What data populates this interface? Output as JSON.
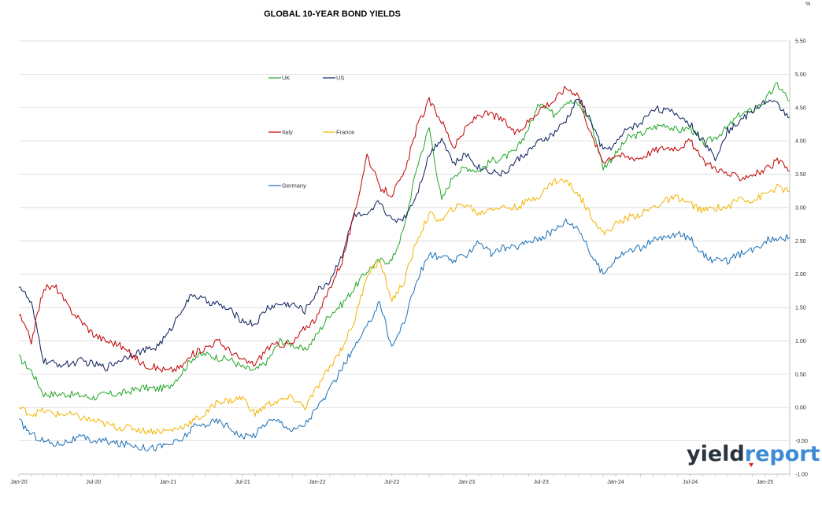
{
  "chart_data": {
    "type": "line",
    "title": "GLOBAL 10-YEAR BOND YIELDS",
    "unit": "%",
    "xlim": [
      "2020-01",
      "2025-03"
    ],
    "ylim": [
      -1.0,
      5.5
    ],
    "y_ticks": [
      "5.50",
      "5.00",
      "4.50",
      "4.00",
      "3.50",
      "3.00",
      "2.50",
      "2.00",
      "1.50",
      "1.00",
      "0.50",
      "0.00",
      "-0.50",
      "-1.00"
    ],
    "y_tick_values": [
      5.5,
      5.0,
      4.5,
      4.0,
      3.5,
      3.0,
      2.5,
      2.0,
      1.5,
      1.0,
      0.5,
      0.0,
      -0.5,
      -1.0
    ],
    "x_ticks": [
      "Jan-20",
      "Jul-20",
      "Jan-21",
      "Jul-21",
      "Jan-22",
      "Jul-22",
      "Jan-23",
      "Jul-23",
      "Jan-24",
      "Jul-24",
      "Jan-25"
    ],
    "x_tick_months": [
      0,
      6,
      12,
      18,
      24,
      30,
      36,
      42,
      48,
      54,
      60
    ],
    "grid": "horizontal",
    "legend_position": "top-center",
    "series": [
      {
        "name": "UK",
        "color": "#22a526",
        "values": [
          0.75,
          0.55,
          0.2,
          0.2,
          0.2,
          0.18,
          0.15,
          0.2,
          0.2,
          0.25,
          0.3,
          0.28,
          0.3,
          0.5,
          0.75,
          0.8,
          0.75,
          0.72,
          0.6,
          0.55,
          0.7,
          1.0,
          0.95,
          0.85,
          1.1,
          1.4,
          1.55,
          1.8,
          2.05,
          2.2,
          2.2,
          2.7,
          3.6,
          4.2,
          3.1,
          3.5,
          3.6,
          3.55,
          3.7,
          3.75,
          3.85,
          4.2,
          4.6,
          4.4,
          4.6,
          4.55,
          4.3,
          3.6,
          3.8,
          4.05,
          4.1,
          4.2,
          4.25,
          4.15,
          4.2,
          3.95,
          4.05,
          4.2,
          4.4,
          4.45,
          4.6,
          4.85,
          4.6
        ]
      },
      {
        "name": "US",
        "color": "#0a1f5c",
        "values": [
          1.85,
          1.55,
          0.7,
          0.65,
          0.65,
          0.7,
          0.65,
          0.6,
          0.7,
          0.8,
          0.85,
          0.9,
          1.1,
          1.45,
          1.7,
          1.6,
          1.55,
          1.45,
          1.3,
          1.25,
          1.5,
          1.55,
          1.55,
          1.45,
          1.75,
          1.9,
          2.3,
          2.9,
          2.85,
          3.1,
          2.8,
          2.85,
          3.2,
          3.8,
          4.05,
          3.65,
          3.8,
          3.6,
          3.55,
          3.5,
          3.7,
          3.85,
          4.0,
          4.1,
          4.3,
          4.65,
          4.3,
          3.85,
          3.95,
          4.2,
          4.25,
          4.5,
          4.45,
          4.4,
          4.25,
          4.0,
          3.75,
          4.15,
          4.3,
          4.45,
          4.6,
          4.55,
          4.35
        ]
      },
      {
        "name": "Italy",
        "color": "#c00000",
        "values": [
          1.4,
          1.0,
          1.8,
          1.8,
          1.5,
          1.3,
          1.1,
          1.0,
          0.95,
          0.8,
          0.65,
          0.6,
          0.55,
          0.6,
          0.8,
          0.9,
          1.0,
          0.85,
          0.7,
          0.65,
          0.9,
          0.95,
          0.95,
          1.2,
          1.35,
          1.8,
          2.2,
          2.9,
          3.8,
          3.3,
          3.2,
          3.5,
          4.2,
          4.6,
          4.3,
          3.9,
          4.2,
          4.4,
          4.4,
          4.3,
          4.1,
          4.3,
          4.5,
          4.6,
          4.8,
          4.7,
          4.1,
          3.7,
          3.8,
          3.75,
          3.75,
          3.85,
          3.9,
          3.9,
          4.0,
          3.7,
          3.6,
          3.5,
          3.45,
          3.5,
          3.55,
          3.7,
          3.55
        ]
      },
      {
        "name": "France",
        "color": "#f2b400",
        "values": [
          0.0,
          -0.1,
          -0.05,
          -0.1,
          -0.1,
          -0.15,
          -0.2,
          -0.25,
          -0.3,
          -0.3,
          -0.35,
          -0.35,
          -0.35,
          -0.3,
          -0.2,
          -0.1,
          0.1,
          0.1,
          0.15,
          -0.1,
          0.05,
          0.1,
          0.15,
          0.0,
          0.3,
          0.6,
          0.9,
          1.3,
          2.0,
          2.2,
          1.6,
          1.9,
          2.5,
          2.9,
          2.8,
          3.0,
          3.05,
          2.9,
          3.0,
          3.0,
          3.0,
          3.1,
          3.2,
          3.4,
          3.4,
          3.2,
          2.9,
          2.6,
          2.75,
          2.85,
          2.9,
          3.0,
          3.1,
          3.15,
          3.05,
          2.95,
          3.0,
          3.0,
          3.15,
          3.1,
          3.2,
          3.3,
          3.25
        ]
      },
      {
        "name": "Germany",
        "color": "#1a6fb5",
        "values": [
          -0.2,
          -0.4,
          -0.5,
          -0.55,
          -0.5,
          -0.45,
          -0.5,
          -0.5,
          -0.55,
          -0.55,
          -0.6,
          -0.6,
          -0.55,
          -0.5,
          -0.3,
          -0.25,
          -0.2,
          -0.3,
          -0.45,
          -0.4,
          -0.2,
          -0.2,
          -0.35,
          -0.25,
          0.0,
          0.25,
          0.6,
          0.9,
          1.2,
          1.6,
          0.9,
          1.3,
          1.9,
          2.3,
          2.25,
          2.2,
          2.3,
          2.5,
          2.3,
          2.4,
          2.4,
          2.5,
          2.55,
          2.65,
          2.8,
          2.7,
          2.3,
          2.0,
          2.25,
          2.35,
          2.4,
          2.5,
          2.55,
          2.6,
          2.55,
          2.3,
          2.2,
          2.2,
          2.3,
          2.35,
          2.5,
          2.55,
          2.55
        ]
      }
    ]
  },
  "logo": {
    "part1": "yield",
    "part2": "report",
    "color1": "#2a3340",
    "color2": "#3d8bd4"
  }
}
